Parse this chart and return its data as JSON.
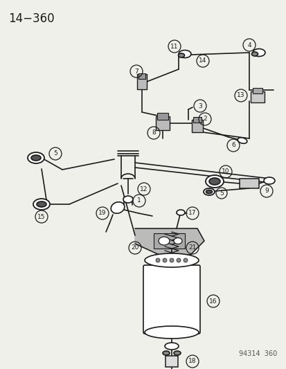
{
  "title": "14−360",
  "footer": "94314  360",
  "bg_color": "#f0f0eb",
  "line_color": "#1a1a1a",
  "label_color": "#1a1a1a",
  "figsize": [
    4.14,
    5.33
  ],
  "dpi": 100
}
